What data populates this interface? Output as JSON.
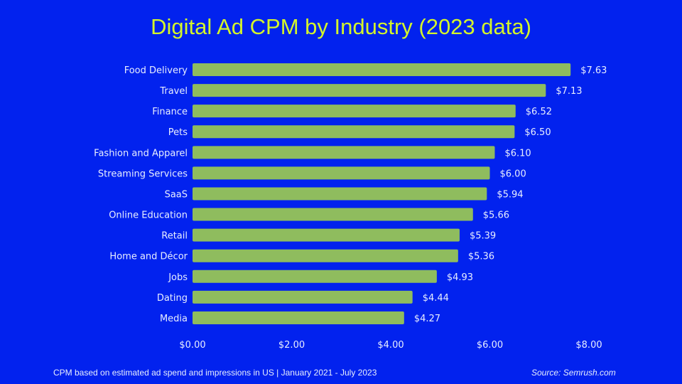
{
  "chart_data": {
    "type": "bar",
    "orientation": "horizontal",
    "title": "Digital Ad CPM by Industry (2023 data)",
    "categories": [
      "Food Delivery",
      "Travel",
      "Finance",
      "Pets",
      "Fashion and Apparel",
      "Streaming Services",
      "SaaS",
      "Online Education",
      "Retail",
      "Home and Décor",
      "Jobs",
      "Dating",
      "Media"
    ],
    "values": [
      7.63,
      7.13,
      6.52,
      6.5,
      6.1,
      6.0,
      5.94,
      5.66,
      5.39,
      5.36,
      4.93,
      4.44,
      4.27
    ],
    "data_labels": [
      "$7.63",
      "$7.13",
      "$6.52",
      "$6.50",
      "$6.10",
      "$6.00",
      "$5.94",
      "$5.66",
      "$5.39",
      "$5.36",
      "$4.93",
      "$4.44",
      "$4.27"
    ],
    "xlim": [
      0,
      8
    ],
    "x_ticks": [
      0,
      2,
      4,
      6,
      8
    ],
    "x_tick_labels": [
      "$0.00",
      "$2.00",
      "$4.00",
      "$6.00",
      "$8.00"
    ],
    "xlabel": "",
    "ylabel": "",
    "grid": false,
    "colors": {
      "background": "#0222EE",
      "bar": "#8FBC5E",
      "title": "#D4F52A",
      "text": "#E8EEFF"
    }
  },
  "footer": {
    "note": "CPM based on estimated ad spend and impressions in US  |  January 2021 - July 2023",
    "source": "Source: Semrush.com"
  }
}
